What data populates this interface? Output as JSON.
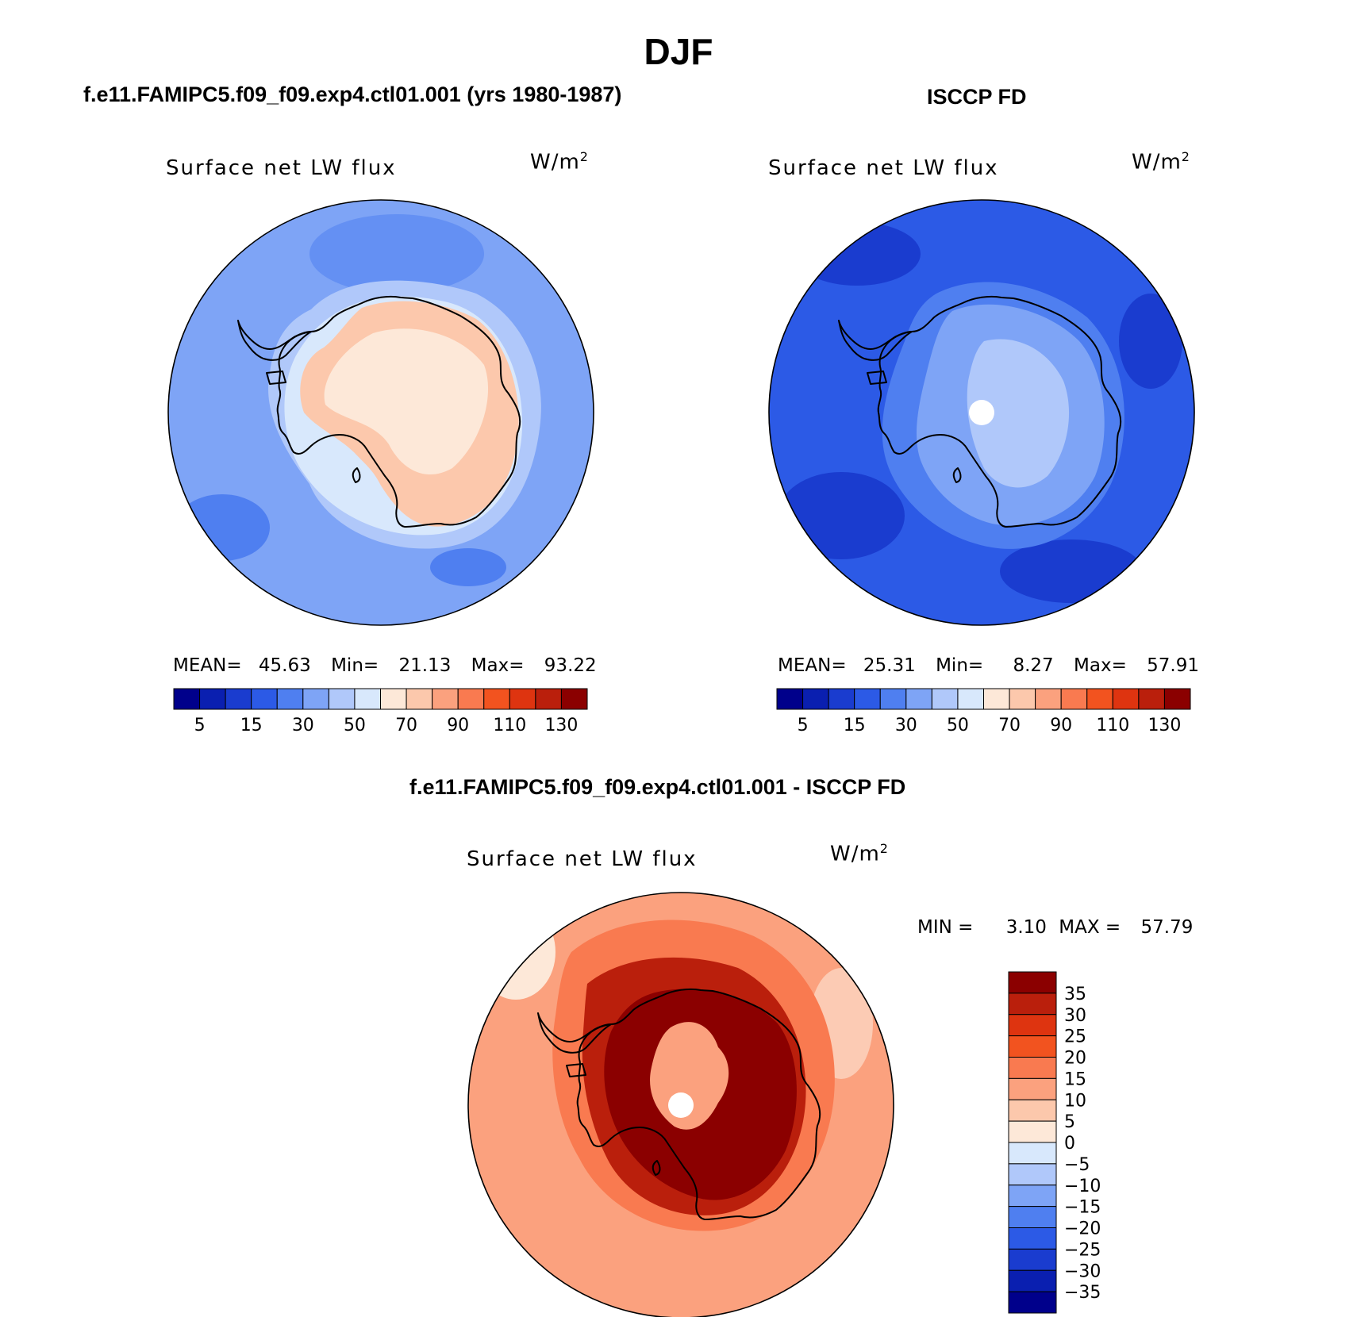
{
  "header": {
    "season": "DJF"
  },
  "panels": [
    {
      "title": "f.e11.FAMIPC5.f09_f09.exp4.ctl01.001 (yrs 1980-1987)",
      "variable": "Surface net LW flux",
      "units": "W/m",
      "units_sup": "2",
      "stats": {
        "mean_label": "MEAN=",
        "mean": "45.63",
        "min_label": "Min=",
        "min": "21.13",
        "max_label": "Max=",
        "max": "93.22"
      }
    },
    {
      "title": "ISCCP FD",
      "variable": "Surface net LW flux",
      "units": "W/m",
      "units_sup": "2",
      "stats": {
        "mean_label": "MEAN=",
        "mean": "25.31",
        "min_label": "Min=",
        "min": "8.27",
        "max_label": "Max=",
        "max": "57.91"
      }
    },
    {
      "title": "f.e11.FAMIPC5.f09_f09.exp4.ctl01.001 - ISCCP FD",
      "variable": "Surface net LW flux",
      "units": "W/m",
      "units_sup": "2",
      "stats": {
        "min_label": "MIN =",
        "min": "3.10",
        "max_label": "MAX =",
        "max": "57.79"
      }
    }
  ],
  "colorbar_abs": {
    "colors": [
      "#00008b",
      "#0a1fb0",
      "#1a3ccf",
      "#2c5ae6",
      "#4f7ff0",
      "#7ea4f6",
      "#b0c8fa",
      "#d8e8fc",
      "#fde8d8",
      "#fcc8ac",
      "#fba17e",
      "#f97a50",
      "#f2531f",
      "#de3410",
      "#ba1f0c",
      "#8b0000"
    ],
    "labels": [
      "5",
      "15",
      "30",
      "50",
      "70",
      "90",
      "110",
      "130"
    ]
  },
  "colorbar_diff": {
    "colors": [
      "#8b0000",
      "#ba1f0c",
      "#de3410",
      "#f2531f",
      "#f97a50",
      "#fba17e",
      "#fcc8ac",
      "#fde8d8",
      "#d8e8fc",
      "#b0c8fa",
      "#7ea4f6",
      "#4f7ff0",
      "#2c5ae6",
      "#1a3ccf",
      "#0a1fb0",
      "#00008b"
    ],
    "labels": [
      "35",
      "30",
      "25",
      "20",
      "15",
      "10",
      "5",
      "0",
      "−5",
      "−10",
      "−15",
      "−20",
      "−25",
      "−30",
      "−35"
    ]
  },
  "maps": {
    "model": {
      "ocean": "#7ea4f6",
      "ring": "#b0c8fa",
      "coast_zone": "#d8e8fc",
      "land": "#fcc8ac",
      "land_inner": "#fde8d8",
      "dark_patch": "#4f7ff0"
    },
    "obs": {
      "ocean": "#2c5ae6",
      "ring": "#4f7ff0",
      "coast_zone": "#4f7ff0",
      "land": "#7ea4f6",
      "land_inner": "#b0c8fa",
      "dark_patch": "#1a3ccf",
      "pole_hole": "#ffffff"
    },
    "diff": {
      "ocean": "#fba17e",
      "ring": "#f97a50",
      "coast_zone": "#ba1f0c",
      "land": "#8b0000",
      "land_inner": "#fba17e",
      "dark_patch": "#fde8d8",
      "pole_hole": "#ffffff"
    }
  }
}
